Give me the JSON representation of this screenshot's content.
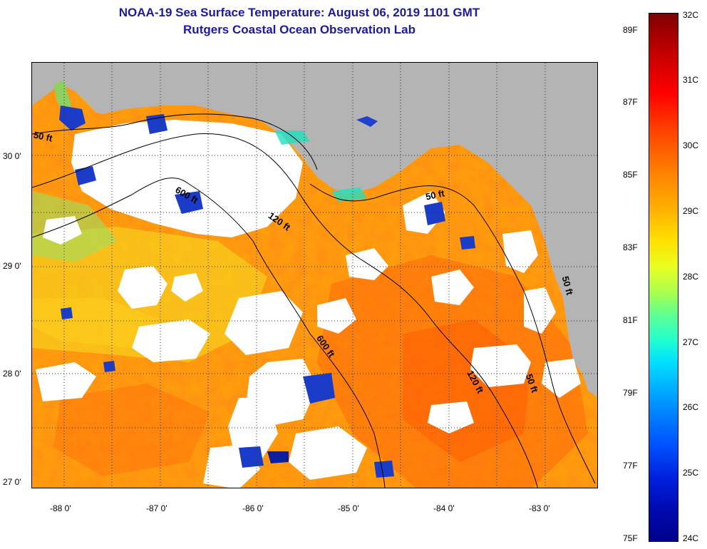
{
  "title": {
    "line1": "NOAA-19 Sea Surface Temperature:  August 06, 2019 1101 GMT",
    "line2": "Rutgers Coastal Ocean Observation Lab"
  },
  "lat_labels": [
    "30 0'",
    "29 0'",
    "28 0'",
    "27 0'"
  ],
  "lon_labels": [
    "-88 0'",
    "-87 0'",
    "-86 0'",
    "-85 0'",
    "-84 0'",
    "-83 0'"
  ],
  "contour_labels": [
    "50 ft",
    "600 ft",
    "120 ft",
    "50 ft",
    "600 ft",
    "120 ft",
    "50 ft",
    "50 ft"
  ],
  "colorbar": {
    "fahrenheit": [
      "89F",
      "87F",
      "85F",
      "83F",
      "81F",
      "79F",
      "77F",
      "75F"
    ],
    "celsius": [
      "32C",
      "31C",
      "30C",
      "29C",
      "28C",
      "27C",
      "26C",
      "25C",
      "24C"
    ]
  },
  "colors": {
    "title": "#1a1aa0",
    "land": "#b4b4b4",
    "cloud": "#ffffff",
    "warm_sst": "#ff8c14",
    "cool_sst": "#1a3cc8"
  }
}
